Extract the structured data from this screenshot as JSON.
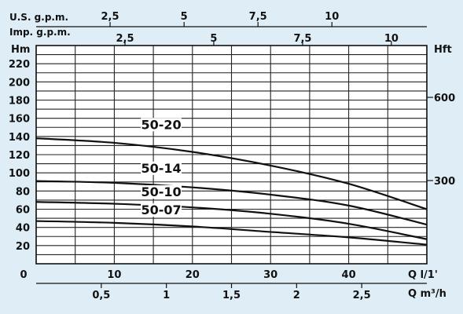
{
  "chart_data": {
    "type": "line",
    "grid": true,
    "left_axis": {
      "unit": "Hm",
      "ticks": [
        "220",
        "200",
        "180",
        "160",
        "140",
        "120",
        "100",
        "80",
        "60",
        "40",
        "20"
      ],
      "tick_values": [
        220,
        200,
        180,
        160,
        140,
        120,
        100,
        80,
        60,
        40,
        20
      ],
      "ylim": [
        0,
        240
      ]
    },
    "right_axis": {
      "unit": "Hft",
      "ticks": [
        "600",
        "300"
      ],
      "tick_values_m": [
        183,
        91.5
      ]
    },
    "x_axis_lpm": {
      "unit": "Q l/1'",
      "origin_label": "0",
      "ticks": [
        "10",
        "20",
        "30",
        "40"
      ],
      "tick_values": [
        10,
        20,
        30,
        40
      ],
      "xlim": [
        0,
        50
      ]
    },
    "x_axis_m3h": {
      "unit": "Q m³/h",
      "ticks": [
        "0,5",
        "1",
        "1,5",
        "2",
        "2,5"
      ],
      "tick_values_lpm": [
        8.333,
        16.667,
        25,
        33.333,
        41.667
      ]
    },
    "x_axis_usgpm": {
      "unit": "U.S. g.p.m.",
      "ticks": [
        "2,5",
        "5",
        "7,5",
        "10"
      ],
      "tick_values_lpm": [
        9.46,
        18.93,
        28.39,
        37.85
      ]
    },
    "x_axis_impgpm": {
      "unit": "Imp. g.p.m.",
      "ticks": [
        "2,5",
        "5",
        "7,5",
        "10"
      ],
      "tick_values_lpm": [
        11.37,
        22.73,
        34.1,
        45.46
      ]
    },
    "series": [
      {
        "name": "50-20",
        "x": [
          0,
          10,
          20,
          30,
          40,
          50
        ],
        "y": [
          138,
          133,
          123,
          108,
          88,
          60
        ],
        "label_at": [
          16,
          150
        ],
        "color": "#111111"
      },
      {
        "name": "50-14",
        "x": [
          0,
          10,
          20,
          30,
          40,
          50
        ],
        "y": [
          91,
          89,
          84,
          76,
          64,
          43
        ],
        "label_at": [
          16,
          102
        ],
        "color": "#111111"
      },
      {
        "name": "50-10",
        "x": [
          0,
          10,
          20,
          30,
          40,
          50
        ],
        "y": [
          68,
          66,
          62,
          55,
          44,
          27
        ],
        "label_at": [
          16,
          76
        ],
        "color": "#111111"
      },
      {
        "name": "50-07",
        "x": [
          0,
          10,
          20,
          30,
          40,
          50
        ],
        "y": [
          47,
          45,
          41,
          35,
          29,
          21
        ],
        "label_at": [
          16,
          56
        ],
        "color": "#111111"
      }
    ]
  }
}
